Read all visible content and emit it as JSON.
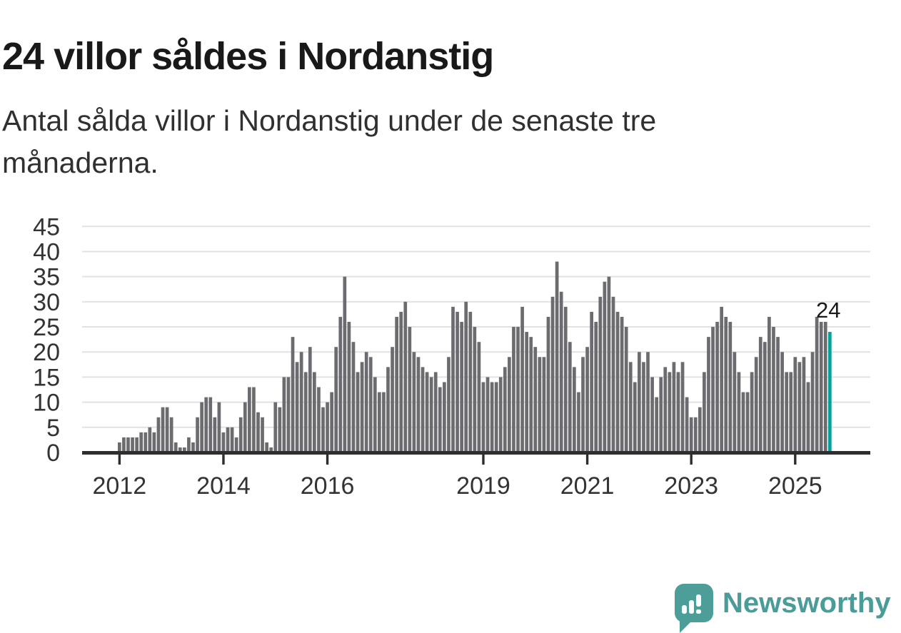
{
  "header": {
    "title": "24 villor såldes i Nordanstig",
    "subtitle": "Antal sålda villor i Nordanstig under de senaste tre månaderna."
  },
  "chart_data": {
    "type": "bar",
    "title": "24 villor såldes i Nordanstig",
    "subtitle": "Antal sålda villor i Nordanstig under de senaste tre månaderna.",
    "unit": "antal sålda villor (rullande 3 månader)",
    "x_start_month": "2012-01",
    "x_end_month": "2025-09",
    "x_tick_years": [
      2012,
      2014,
      2016,
      2019,
      2021,
      2023,
      2025
    ],
    "y_ticks": [
      0,
      5,
      10,
      15,
      20,
      25,
      30,
      35,
      40,
      45
    ],
    "ylim": [
      0,
      45
    ],
    "grid": true,
    "legend": "none",
    "bar_color": "#6c6c70",
    "highlight_color": "#09a09a",
    "grid_color": "#e2e2e2",
    "axis_color": "#2e2e2e",
    "label_color": "#333333",
    "highlight_index": 164,
    "annotation": {
      "text": "24",
      "index": 164
    },
    "values": [
      2,
      3,
      3,
      3,
      3,
      4,
      4,
      5,
      4,
      7,
      9,
      9,
      7,
      2,
      1,
      1,
      3,
      2,
      7,
      10,
      11,
      11,
      7,
      10,
      4,
      5,
      5,
      3,
      7,
      10,
      13,
      13,
      8,
      7,
      2,
      1,
      10,
      9,
      15,
      15,
      23,
      18,
      20,
      16,
      21,
      16,
      13,
      9,
      10,
      12,
      21,
      27,
      35,
      26,
      22,
      16,
      18,
      20,
      19,
      15,
      12,
      12,
      17,
      21,
      27,
      28,
      30,
      25,
      20,
      19,
      17,
      16,
      15,
      16,
      13,
      14,
      19,
      29,
      28,
      26,
      30,
      28,
      25,
      22,
      14,
      15,
      14,
      14,
      15,
      17,
      19,
      25,
      25,
      29,
      24,
      23,
      21,
      19,
      19,
      27,
      31,
      38,
      32,
      29,
      22,
      17,
      12,
      19,
      21,
      28,
      26,
      31,
      34,
      35,
      31,
      28,
      27,
      25,
      18,
      14,
      20,
      18,
      20,
      15,
      11,
      15,
      17,
      16,
      18,
      16,
      18,
      11,
      7,
      7,
      9,
      16,
      23,
      25,
      26,
      29,
      27,
      26,
      20,
      16,
      12,
      12,
      16,
      19,
      23,
      22,
      27,
      25,
      23,
      20,
      16,
      16,
      19,
      18,
      19,
      14,
      20,
      27,
      26,
      26,
      24
    ]
  },
  "footer": {
    "brand": "Newsworthy",
    "logo_icon": "bar-chart-speech-bubble-icon",
    "brand_color": "#4a9c98"
  }
}
